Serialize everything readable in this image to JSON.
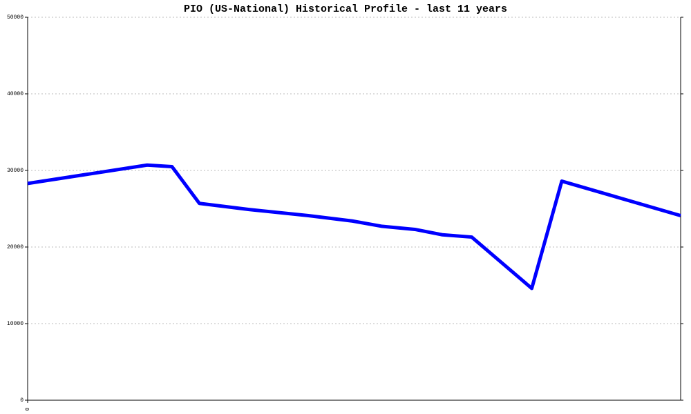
{
  "chart_data": {
    "type": "line",
    "title": "PIO (US-National) Historical Profile - last 11 years",
    "x": [
      0,
      18.3,
      22.1,
      26.3,
      33.9,
      43.0,
      49.7,
      54.3,
      59.3,
      63.5,
      68.0,
      77.2,
      81.8,
      100
    ],
    "values": [
      28300,
      30700,
      30500,
      25700,
      24900,
      24100,
      23400,
      22700,
      22300,
      21600,
      21300,
      14600,
      28600,
      24100
    ],
    "color": "#0000ff",
    "xlim": [
      0,
      100
    ],
    "xticks": [
      0
    ],
    "ylim": [
      0,
      50000
    ],
    "yticks": [
      0,
      10000,
      20000,
      30000,
      40000,
      50000
    ],
    "grid": true
  }
}
